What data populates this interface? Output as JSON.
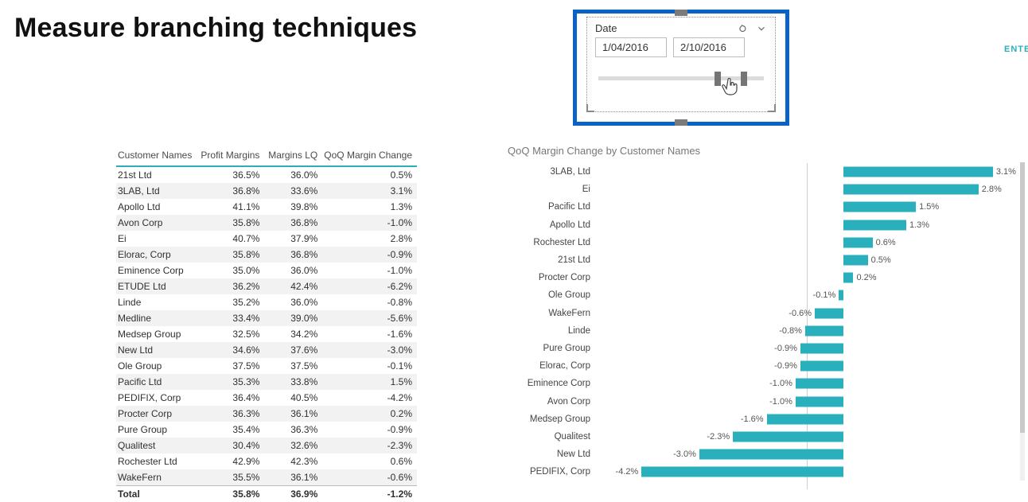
{
  "page": {
    "title": "Measure branching techniques"
  },
  "cut_label": "ENTE",
  "slicer": {
    "label": "Date",
    "date_from": "1/04/2016",
    "date_to": "2/10/2016",
    "thumb_a_pct": 70,
    "thumb_b_pct": 86
  },
  "table": {
    "columns": [
      "Customer Names",
      "Profit Margins",
      "Margins LQ",
      "QoQ Margin Change"
    ],
    "rows": [
      [
        "21st Ltd",
        "36.5%",
        "36.0%",
        "0.5%"
      ],
      [
        "3LAB, Ltd",
        "36.8%",
        "33.6%",
        "3.1%"
      ],
      [
        "Apollo Ltd",
        "41.1%",
        "39.8%",
        "1.3%"
      ],
      [
        "Avon Corp",
        "35.8%",
        "36.8%",
        "-1.0%"
      ],
      [
        "Ei",
        "40.7%",
        "37.9%",
        "2.8%"
      ],
      [
        "Elorac, Corp",
        "35.8%",
        "36.8%",
        "-0.9%"
      ],
      [
        "Eminence Corp",
        "35.0%",
        "36.0%",
        "-1.0%"
      ],
      [
        "ETUDE Ltd",
        "36.2%",
        "42.4%",
        "-6.2%"
      ],
      [
        "Linde",
        "35.2%",
        "36.0%",
        "-0.8%"
      ],
      [
        "Medline",
        "33.4%",
        "39.0%",
        "-5.6%"
      ],
      [
        "Medsep Group",
        "32.5%",
        "34.2%",
        "-1.6%"
      ],
      [
        "New Ltd",
        "34.6%",
        "37.6%",
        "-3.0%"
      ],
      [
        "Ole Group",
        "37.5%",
        "37.5%",
        "-0.1%"
      ],
      [
        "Pacific Ltd",
        "35.3%",
        "33.8%",
        "1.5%"
      ],
      [
        "PEDIFIX, Corp",
        "36.4%",
        "40.5%",
        "-4.2%"
      ],
      [
        "Procter Corp",
        "36.3%",
        "36.1%",
        "0.2%"
      ],
      [
        "Pure Group",
        "35.4%",
        "36.3%",
        "-0.9%"
      ],
      [
        "Qualitest",
        "30.4%",
        "32.6%",
        "-2.3%"
      ],
      [
        "Rochester Ltd",
        "42.9%",
        "42.3%",
        "0.6%"
      ],
      [
        "WakeFern",
        "35.5%",
        "36.1%",
        "-0.6%"
      ]
    ],
    "total": [
      "Total",
      "35.8%",
      "36.9%",
      "-1.2%"
    ],
    "header_border_color": "#2ab0bd",
    "row_alt_bg": "#f2f2f2"
  },
  "chart": {
    "title": "QoQ Margin Change by Customer Names",
    "type": "bar",
    "bar_color": "#2ab0bd",
    "label_fontsize": 11,
    "baseline_pct": 59,
    "scale_pct_per_unit": 11.5,
    "series": [
      {
        "label": "3LAB, Ltd",
        "value": 3.1,
        "text": "3.1%"
      },
      {
        "label": "Ei",
        "value": 2.8,
        "text": "2.8%"
      },
      {
        "label": "Pacific Ltd",
        "value": 1.5,
        "text": "1.5%"
      },
      {
        "label": "Apollo Ltd",
        "value": 1.3,
        "text": "1.3%"
      },
      {
        "label": "Rochester Ltd",
        "value": 0.6,
        "text": "0.6%"
      },
      {
        "label": "21st Ltd",
        "value": 0.5,
        "text": "0.5%"
      },
      {
        "label": "Procter Corp",
        "value": 0.2,
        "text": "0.2%"
      },
      {
        "label": "Ole Group",
        "value": -0.1,
        "text": "-0.1%"
      },
      {
        "label": "WakeFern",
        "value": -0.6,
        "text": "-0.6%"
      },
      {
        "label": "Linde",
        "value": -0.8,
        "text": "-0.8%"
      },
      {
        "label": "Pure Group",
        "value": -0.9,
        "text": "-0.9%"
      },
      {
        "label": "Elorac, Corp",
        "value": -0.9,
        "text": "-0.9%"
      },
      {
        "label": "Eminence Corp",
        "value": -1.0,
        "text": "-1.0%"
      },
      {
        "label": "Avon Corp",
        "value": -1.0,
        "text": "-1.0%"
      },
      {
        "label": "Medsep Group",
        "value": -1.6,
        "text": "-1.6%"
      },
      {
        "label": "Qualitest",
        "value": -2.3,
        "text": "-2.3%"
      },
      {
        "label": "New Ltd",
        "value": -3.0,
        "text": "-3.0%"
      },
      {
        "label": "PEDIFIX, Corp",
        "value": -4.2,
        "text": "-4.2%"
      }
    ]
  }
}
